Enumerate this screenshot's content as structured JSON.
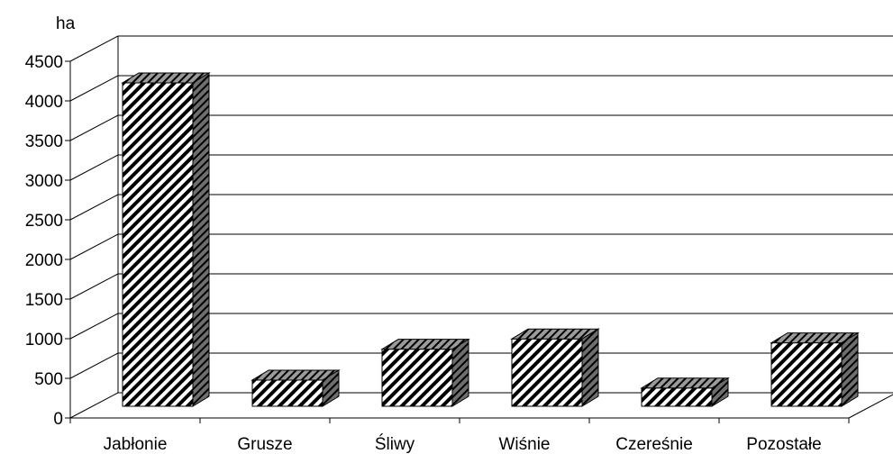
{
  "chart_data": {
    "type": "bar",
    "title": "",
    "xlabel": "",
    "ylabel": "ha",
    "ylim": [
      0,
      4500
    ],
    "yticks": [
      0,
      500,
      1000,
      1500,
      2000,
      2500,
      3000,
      3500,
      4000,
      4500
    ],
    "categories": [
      "Jabłonie",
      "Grusze",
      "Śliwy",
      "Wiśnie",
      "Czereśnie",
      "Pozostałe"
    ],
    "values": [
      4080,
      330,
      720,
      850,
      230,
      800
    ],
    "grid": true,
    "style": "3d-hatched"
  }
}
